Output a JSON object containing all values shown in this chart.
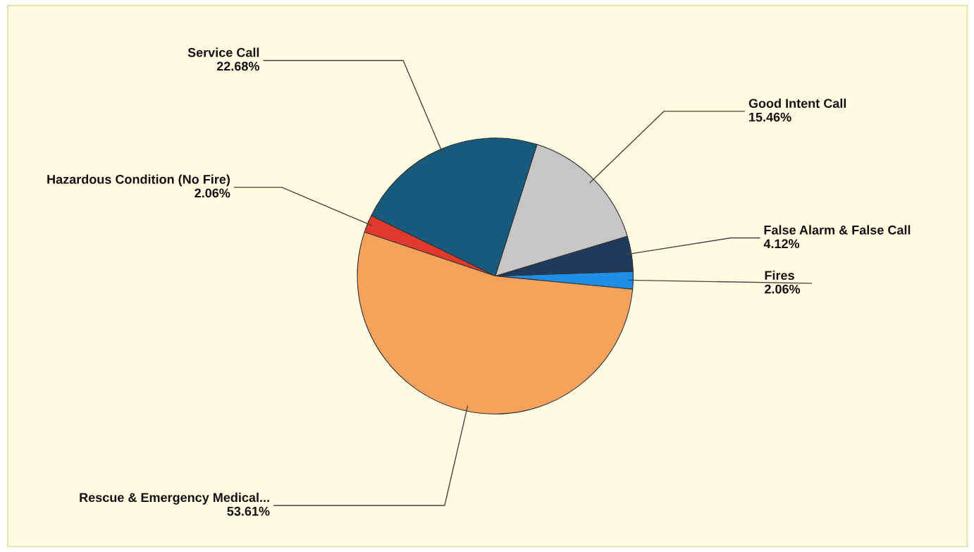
{
  "chart_data": {
    "type": "pie",
    "categories": [
      "Fires",
      "False Alarm & False Call",
      "Good Intent Call",
      "Service Call",
      "Hazardous Condition (No Fire)",
      "Rescue & Emergency Medical..."
    ],
    "values": [
      2.06,
      4.12,
      15.46,
      22.68,
      2.06,
      53.61
    ],
    "value_labels": [
      "2.06%",
      "4.12%",
      "15.46%",
      "22.68%",
      "2.06%",
      "53.61%"
    ],
    "colors": [
      "#1e8ee6",
      "#1f3b5c",
      "#c6c6c6",
      "#175a7c",
      "#e2392d",
      "#f7a25c"
    ]
  }
}
